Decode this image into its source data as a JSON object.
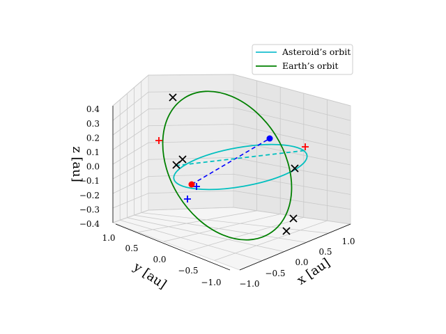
{
  "chart_data": {
    "type": "3d-line",
    "x_axis": {
      "label": "x [au]",
      "ticks": [
        "−1.0",
        "−0.5",
        "0.0",
        "0.5",
        "1.0"
      ],
      "range": [
        -1.2,
        1.2
      ]
    },
    "y_axis": {
      "label": "y [au]",
      "ticks": [
        "−1.0",
        "−0.5",
        "0.0",
        "0.5",
        "1.0"
      ],
      "range": [
        -1.2,
        1.2
      ]
    },
    "z_axis": {
      "label": "z [au]",
      "ticks": [
        "−0.4",
        "−0.3",
        "−0.2",
        "−0.1",
        "0.0",
        "0.1",
        "0.2",
        "0.3",
        "0.4"
      ],
      "range": [
        -0.4,
        0.4
      ]
    },
    "grid": true,
    "legend": {
      "placement": "upper right",
      "entries": [
        {
          "label": "Asteroid’s orbit",
          "color": "#17becf"
        },
        {
          "label": "Earth’s orbit",
          "color": "#008000"
        }
      ]
    },
    "series": [
      {
        "name": "Asteroid’s orbit",
        "color": "#00bfbf",
        "shape": "ellipse in plane tilted about x-axis by ~5°, semi-axis ~1.0 au",
        "style": "solid"
      },
      {
        "name": "Earth’s orbit",
        "color": "#008000",
        "shape": "ellipse steeply inclined, z amplitude ~0.4 au",
        "style": "solid"
      }
    ],
    "markers": {
      "red_dot": {
        "color": "#ff0000",
        "label": ""
      },
      "blue_dot": {
        "color": "#0000ff",
        "label": ""
      },
      "black_crosses": 8,
      "red_plus": 2,
      "blue_plus": 2
    },
    "dashed_lines": [
      {
        "color": "#0000ff",
        "from": "red_dot",
        "to": "blue_dot"
      },
      {
        "color": "#00bfbf",
        "from": "black_cross",
        "to": "red_plus"
      }
    ]
  }
}
